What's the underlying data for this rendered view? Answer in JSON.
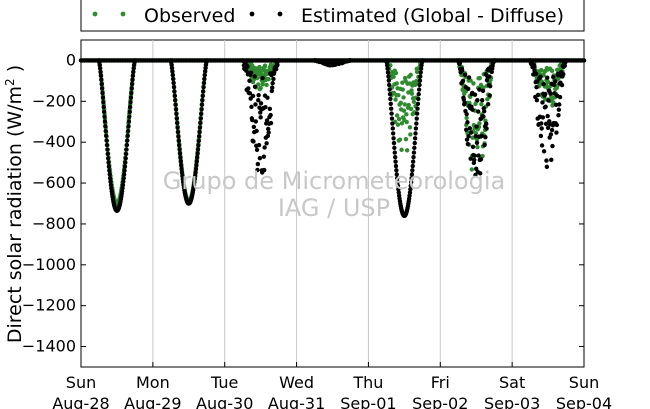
{
  "chart_data": {
    "type": "scatter",
    "ylabel_main": "Direct solar radiation (W/m",
    "ylabel_sup": "2",
    "ylabel_end": " )",
    "ylim": [
      -1500,
      100
    ],
    "yticks": [
      0,
      -200,
      -400,
      -600,
      -800,
      -1000,
      -1200,
      -1400
    ],
    "xlim": [
      "2016-08-28",
      "2016-09-04"
    ],
    "xticks": [
      {
        "day": "Sun",
        "date": "Aug-28"
      },
      {
        "day": "Mon",
        "date": "Aug-29"
      },
      {
        "day": "Tue",
        "date": "Aug-30"
      },
      {
        "day": "Wed",
        "date": "Aug-31"
      },
      {
        "day": "Thu",
        "date": "Sep-01"
      },
      {
        "day": "Fri",
        "date": "Sep-02"
      },
      {
        "day": "Sat",
        "date": "Sep-03"
      },
      {
        "day": "Sun",
        "date": "Sep-04"
      }
    ],
    "grid": "vertical",
    "legend_placement": "top",
    "watermark": [
      "Grupo de Micrometeorologia",
      "IAG / USP"
    ],
    "series": [
      {
        "name": "Observed",
        "color": "#2e8b2e",
        "daily_minimum": [
          {
            "date": "2016-08-28",
            "min": -700
          },
          {
            "date": "2016-08-29",
            "min": -690
          },
          {
            "date": "2016-08-30",
            "min": -150
          },
          {
            "date": "2016-08-31",
            "min": -20
          },
          {
            "date": "2016-09-01",
            "min": -500
          },
          {
            "date": "2016-09-02",
            "min": -600
          },
          {
            "date": "2016-09-03",
            "min": -250
          }
        ]
      },
      {
        "name": "Estimated (Global - Diffuse)",
        "color": "#000000",
        "daily_minimum": [
          {
            "date": "2016-08-28",
            "min": -735
          },
          {
            "date": "2016-08-29",
            "min": -700
          },
          {
            "date": "2016-08-30",
            "min": -580
          },
          {
            "date": "2016-08-31",
            "min": -25
          },
          {
            "date": "2016-09-01",
            "min": -760
          },
          {
            "date": "2016-09-02",
            "min": -640
          },
          {
            "date": "2016-09-03",
            "min": -540
          }
        ]
      }
    ]
  }
}
